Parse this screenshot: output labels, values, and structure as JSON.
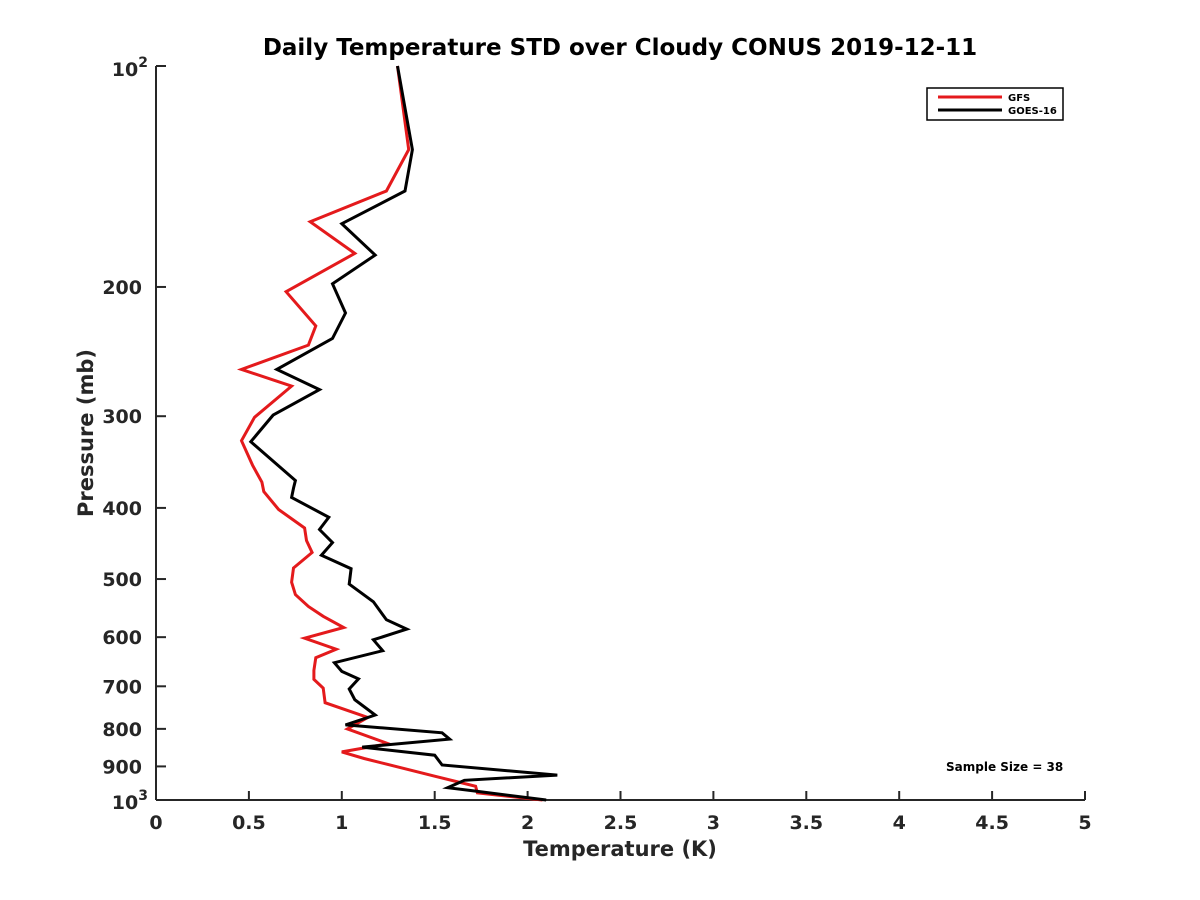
{
  "chart_data": {
    "type": "line",
    "title": "Daily Temperature STD over Cloudy CONUS 2019-12-11",
    "xlabel": "Temperature (K)",
    "ylabel": "Pressure (mb)",
    "xlim": [
      0,
      5
    ],
    "ylim": [
      100,
      1000
    ],
    "y_scale": "log",
    "y_reversed": true,
    "grid": false,
    "legend_position": "top-right",
    "x_ticks": [
      0,
      0.5,
      1,
      1.5,
      2,
      2.5,
      3,
      3.5,
      4,
      4.5,
      5
    ],
    "x_tick_labels": [
      "0",
      "0.5",
      "1",
      "1.5",
      "2",
      "2.5",
      "3",
      "3.5",
      "4",
      "4.5",
      "5"
    ],
    "y_ticks": [
      200,
      300,
      400,
      500,
      600,
      700,
      800,
      900
    ],
    "y_tick_labels": [
      "200",
      "300",
      "400",
      "500",
      "600",
      "700",
      "800",
      "900"
    ],
    "y_end_labels": {
      "top_base": "10",
      "top_exp": "2",
      "bottom_base": "10",
      "bottom_exp": "3"
    },
    "annotation": "Sample Size = 38",
    "series": [
      {
        "name": "GFS",
        "color": "#e41a1c",
        "x": [
          1.3,
          1.36,
          1.24,
          0.83,
          1.07,
          0.7,
          0.86,
          0.82,
          0.46,
          0.73,
          0.53,
          0.46,
          0.52,
          0.57,
          0.58,
          0.66,
          0.8,
          0.81,
          0.84,
          0.74,
          0.73,
          0.75,
          0.82,
          0.9,
          1.01,
          0.8,
          0.97,
          0.86,
          0.85,
          0.85,
          0.9,
          0.91,
          1.14,
          1.03,
          1.25,
          1.0,
          1.12,
          1.5,
          1.72,
          1.73,
          2.08
        ],
        "y": [
          100,
          130,
          148,
          163,
          180,
          203,
          226,
          240,
          259,
          273,
          301,
          324,
          350,
          369,
          380,
          402,
          426,
          443,
          460,
          483,
          505,
          525,
          545,
          562,
          582,
          602,
          623,
          640,
          666,
          685,
          704,
          737,
          772,
          800,
          838,
          860,
          878,
          928,
          958,
          978,
          1000
        ]
      },
      {
        "name": "GOES-16",
        "color": "#000000",
        "x": [
          1.3,
          1.38,
          1.34,
          1.0,
          1.18,
          0.95,
          1.02,
          0.95,
          0.65,
          0.88,
          0.63,
          0.51,
          0.75,
          0.74,
          0.73,
          0.93,
          0.88,
          0.95,
          0.89,
          1.05,
          1.04,
          1.17,
          1.24,
          1.35,
          1.17,
          1.22,
          0.96,
          1.0,
          1.09,
          1.04,
          1.07,
          1.18,
          1.02,
          1.54,
          1.58,
          1.11,
          1.5,
          1.54,
          2.16,
          1.66,
          1.57,
          1.71,
          2.1
        ],
        "y": [
          100,
          130,
          148,
          164,
          181,
          198,
          217,
          235,
          259,
          276,
          299,
          325,
          367,
          376,
          387,
          412,
          428,
          446,
          464,
          484,
          508,
          537,
          568,
          585,
          605,
          626,
          650,
          668,
          684,
          706,
          730,
          766,
          790,
          810,
          826,
          847,
          869,
          896,
          925,
          940,
          962,
          972,
          1000
        ]
      }
    ]
  }
}
